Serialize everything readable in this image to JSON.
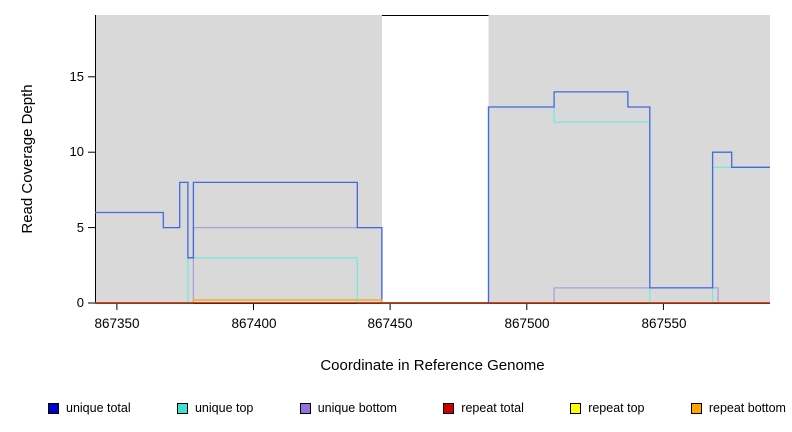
{
  "chart_data": {
    "type": "line",
    "subtype": "step-coverage-plot",
    "title": "",
    "xlabel": "Coordinate in Reference Genome",
    "ylabel": "Read Coverage Depth",
    "xlim": [
      867342,
      867589
    ],
    "ylim": [
      0,
      19.1
    ],
    "x_ticks": [
      867350,
      867400,
      867450,
      867500,
      867550
    ],
    "y_ticks": [
      0,
      5,
      10,
      15
    ],
    "grid": false,
    "legend_position": "bottom",
    "plot_background": "#ffffff",
    "shaded_region_color": "#d9d9d9",
    "background_regions": [
      {
        "x0": 867342,
        "x1": 867447,
        "color": "#d9d9d9"
      },
      {
        "x0": 867486,
        "x1": 867589,
        "color": "#d9d9d9"
      }
    ],
    "gap_region": {
      "x0": 867447,
      "x1": 867486
    },
    "draw_order": [
      2,
      1,
      0,
      5,
      4,
      3
    ],
    "series": [
      {
        "name": "unique total",
        "swatch_color": "#0000cc",
        "line_color": "#4169e1",
        "points": [
          [
            867342,
            6
          ],
          [
            867367,
            5
          ],
          [
            867373,
            8
          ],
          [
            867376,
            3
          ],
          [
            867378,
            8
          ],
          [
            867438,
            5
          ],
          [
            867447,
            0
          ],
          [
            867486,
            13
          ],
          [
            867510,
            14
          ],
          [
            867537,
            13
          ],
          [
            867545,
            1
          ],
          [
            867568,
            10
          ],
          [
            867575,
            9
          ],
          [
            867589,
            9
          ]
        ]
      },
      {
        "name": "unique top",
        "swatch_color": "#40e0d0",
        "line_color": "#7ae8dc",
        "points": [
          [
            867342,
            0
          ],
          [
            867376,
            3
          ],
          [
            867438,
            0
          ],
          [
            867486,
            13
          ],
          [
            867510,
            12
          ],
          [
            867545,
            0
          ],
          [
            867568,
            9
          ],
          [
            867589,
            9
          ]
        ]
      },
      {
        "name": "unique bottom",
        "swatch_color": "#9370db",
        "line_color": "#b49be0",
        "points": [
          [
            867342,
            0
          ],
          [
            867378,
            5
          ],
          [
            867447,
            0
          ],
          [
            867510,
            1
          ],
          [
            867570,
            0
          ],
          [
            867589,
            0
          ]
        ]
      },
      {
        "name": "repeat total",
        "swatch_color": "#cc0000",
        "line_color": "#a00000",
        "points": [
          [
            867342,
            0
          ],
          [
            867589,
            0
          ]
        ]
      },
      {
        "name": "repeat top",
        "swatch_color": "#ffff00",
        "line_color": "#ffff00",
        "points": [
          [
            867342,
            0
          ],
          [
            867589,
            0
          ]
        ]
      },
      {
        "name": "repeat bottom",
        "swatch_color": "#ffa500",
        "line_color": "#ffa500",
        "points": [
          [
            867342,
            0
          ],
          [
            867378,
            0.2
          ],
          [
            867447,
            0
          ],
          [
            867589,
            0
          ]
        ]
      }
    ]
  }
}
